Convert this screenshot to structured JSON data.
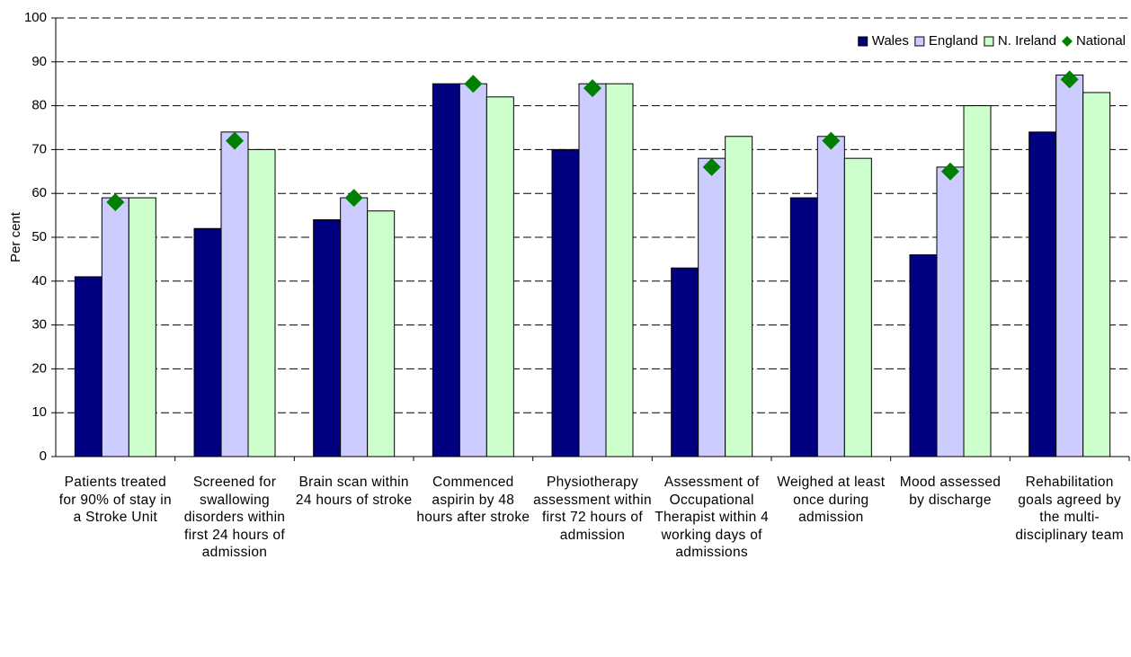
{
  "chart_data": {
    "type": "bar",
    "categories": [
      "Patients treated for 90% of stay in a Stroke Unit",
      "Screened for swallowing disorders within first 24 hours of admission",
      "Brain scan within 24 hours of stroke",
      "Commenced aspirin by 48 hours after stroke",
      "Physiotherapy assessment within first 72 hours of admission",
      "Assessment of Occupational Therapist within 4 working days of admissions",
      "Weighed at least once during admission",
      "Mood assessed by discharge",
      "Rehabilitation goals agreed by the multi-disciplinary team"
    ],
    "series": [
      {
        "name": "Wales",
        "color": "#000080",
        "marker": "bar",
        "values": [
          41,
          52,
          54,
          85,
          70,
          43,
          59,
          46,
          74
        ]
      },
      {
        "name": "England",
        "color": "#ccccff",
        "marker": "bar",
        "values": [
          59,
          74,
          59,
          85,
          85,
          68,
          73,
          66,
          87
        ]
      },
      {
        "name": "N. Ireland",
        "color": "#ccffcc",
        "marker": "bar",
        "values": [
          59,
          70,
          56,
          82,
          85,
          73,
          68,
          80,
          83
        ]
      },
      {
        "name": "National",
        "color": "#008000",
        "marker": "diamond",
        "values": [
          58,
          72,
          59,
          85,
          84,
          66,
          72,
          65,
          86
        ]
      }
    ],
    "y_label": "Per cent",
    "ylim": [
      0,
      100
    ],
    "yticks": [
      0,
      10,
      20,
      30,
      40,
      50,
      60,
      70,
      80,
      90,
      100
    ],
    "grid": true,
    "legend": "upper right"
  }
}
